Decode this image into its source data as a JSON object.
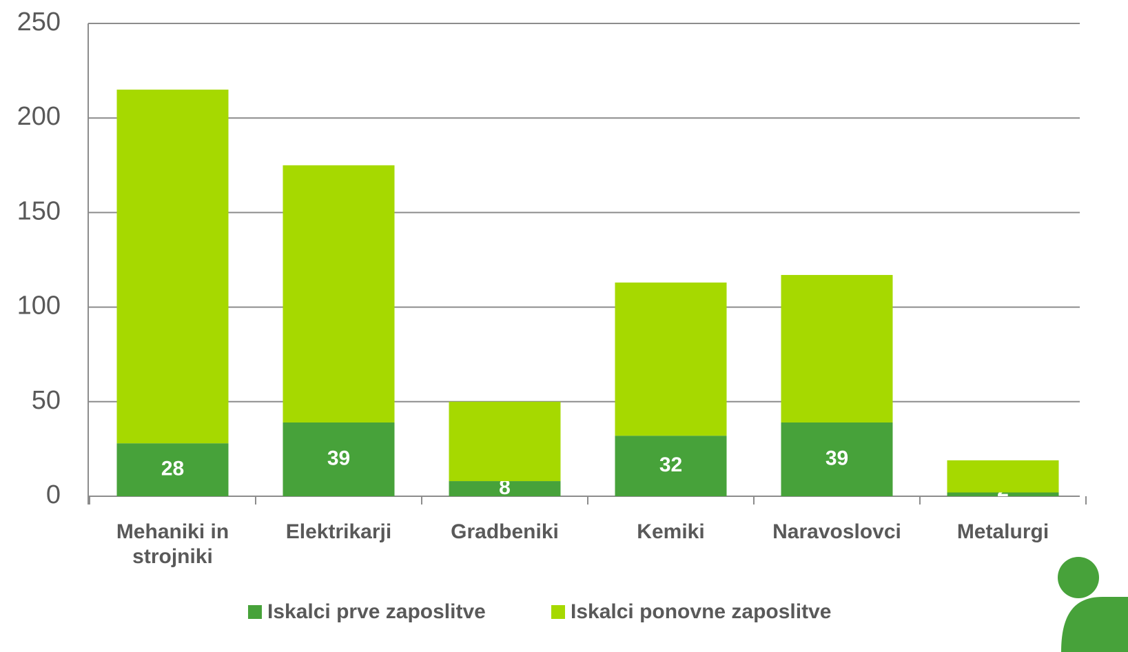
{
  "chart_data": {
    "type": "stacked_bar",
    "categories": [
      "Mehaniki in strojniki",
      "Elektrikarji",
      "Gradbeniki",
      "Kemiki",
      "Naravoslovci",
      "Metalurgi"
    ],
    "series": [
      {
        "name": "Iskalci prve zaposlitve",
        "color": "#47a23a",
        "values": [
          28,
          39,
          8,
          32,
          39,
          2
        ]
      },
      {
        "name": "Iskalci ponovne zaposlitve",
        "color": "#a6d900",
        "values": [
          187,
          136,
          42,
          81,
          78,
          17
        ]
      }
    ],
    "ylim": [
      0,
      250
    ],
    "yticks": [
      0,
      50,
      100,
      150,
      200,
      250
    ],
    "grid": true,
    "legend": "bottom"
  }
}
